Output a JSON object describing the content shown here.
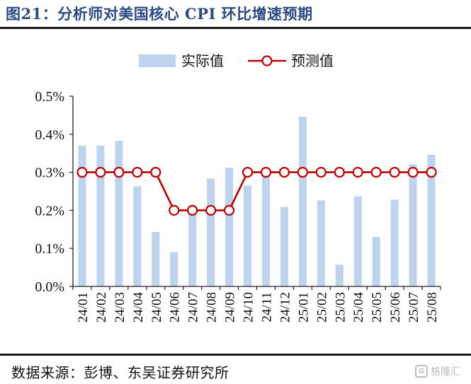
{
  "header": {
    "title": "图21：分析师对美国核心 CPI 环比增速预期"
  },
  "footer": {
    "source": "数据来源：彭博、东吴证券研究所",
    "watermark": "格隆汇"
  },
  "colors": {
    "bar": "#bdd3ee",
    "line": "#c00000",
    "marker_fill": "#ffffff",
    "title": "#2a4a86"
  },
  "chart_data": {
    "type": "bar",
    "categories": [
      "24/01",
      "24/02",
      "24/03",
      "24/04",
      "24/05",
      "24/06",
      "24/07",
      "24/08",
      "24/09",
      "24/10",
      "24/11",
      "24/12",
      "25/01",
      "25/02",
      "25/03",
      "25/04",
      "25/05",
      "25/06",
      "25/07",
      "25/08"
    ],
    "series": [
      {
        "name": "实际值",
        "type": "bar",
        "values": [
          0.37,
          0.37,
          0.383,
          0.263,
          0.143,
          0.09,
          0.19,
          0.283,
          0.312,
          0.265,
          0.306,
          0.209,
          0.446,
          0.226,
          0.057,
          0.237,
          0.13,
          0.228,
          0.321,
          0.346
        ]
      },
      {
        "name": "预测值",
        "type": "line",
        "values": [
          0.3,
          0.3,
          0.3,
          0.3,
          0.3,
          0.2,
          0.2,
          0.2,
          0.2,
          0.3,
          0.3,
          0.3,
          0.3,
          0.3,
          0.3,
          0.3,
          0.3,
          0.3,
          0.3,
          0.3
        ]
      }
    ],
    "yticks": [
      "0.0%",
      "0.1%",
      "0.2%",
      "0.3%",
      "0.4%",
      "0.5%"
    ],
    "ylim": [
      0,
      0.5
    ],
    "legend_position": "top-center",
    "grid": false
  }
}
